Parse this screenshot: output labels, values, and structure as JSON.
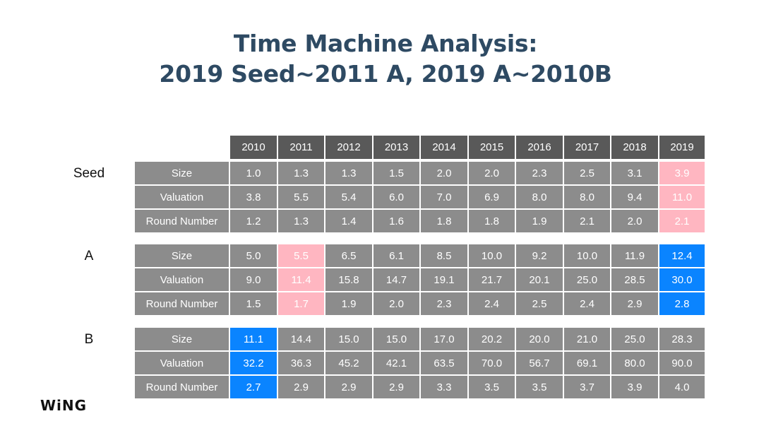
{
  "title": {
    "line1": "Time Machine Analysis:",
    "line2": "2019 Seed~2011 A, 2019 A~2010B"
  },
  "logo": "WiNG",
  "colors": {
    "header": "#595959",
    "cell": "#8c8c8c",
    "highlight_pink": "#ffb6c1",
    "highlight_blue": "#0a84ff",
    "title": "#2e4a63"
  },
  "chart_data": {
    "type": "table",
    "years": [
      "2010",
      "2011",
      "2012",
      "2013",
      "2014",
      "2015",
      "2016",
      "2017",
      "2018",
      "2019"
    ],
    "sections": [
      {
        "name": "Seed",
        "rows": [
          {
            "metric": "Size",
            "values": [
              "1.0",
              "1.3",
              "1.3",
              "1.5",
              "2.0",
              "2.0",
              "2.3",
              "2.5",
              "3.1",
              "3.9"
            ]
          },
          {
            "metric": "Valuation",
            "values": [
              "3.8",
              "5.5",
              "5.4",
              "6.0",
              "7.0",
              "6.9",
              "8.0",
              "8.0",
              "9.4",
              "11.0"
            ]
          },
          {
            "metric": "Round Number",
            "values": [
              "1.2",
              "1.3",
              "1.4",
              "1.6",
              "1.8",
              "1.8",
              "1.9",
              "2.1",
              "2.0",
              "2.1"
            ]
          }
        ],
        "highlights": [
          {
            "year": "2019",
            "color": "pink"
          }
        ]
      },
      {
        "name": "A",
        "rows": [
          {
            "metric": "Size",
            "values": [
              "5.0",
              "5.5",
              "6.5",
              "6.1",
              "8.5",
              "10.0",
              "9.2",
              "10.0",
              "11.9",
              "12.4"
            ]
          },
          {
            "metric": "Valuation",
            "values": [
              "9.0",
              "11.4",
              "15.8",
              "14.7",
              "19.1",
              "21.7",
              "20.1",
              "25.0",
              "28.5",
              "30.0"
            ]
          },
          {
            "metric": "Round Number",
            "values": [
              "1.5",
              "1.7",
              "1.9",
              "2.0",
              "2.3",
              "2.4",
              "2.5",
              "2.4",
              "2.9",
              "2.8"
            ]
          }
        ],
        "highlights": [
          {
            "year": "2011",
            "color": "pink"
          },
          {
            "year": "2019",
            "color": "blue"
          }
        ]
      },
      {
        "name": "B",
        "rows": [
          {
            "metric": "Size",
            "values": [
              "11.1",
              "14.4",
              "15.0",
              "15.0",
              "17.0",
              "20.2",
              "20.0",
              "21.0",
              "25.0",
              "28.3"
            ]
          },
          {
            "metric": "Valuation",
            "values": [
              "32.2",
              "36.3",
              "45.2",
              "42.1",
              "63.5",
              "70.0",
              "56.7",
              "69.1",
              "80.0",
              "90.0"
            ]
          },
          {
            "metric": "Round Number",
            "values": [
              "2.7",
              "2.9",
              "2.9",
              "2.9",
              "3.3",
              "3.5",
              "3.5",
              "3.7",
              "3.9",
              "4.0"
            ]
          }
        ],
        "highlights": [
          {
            "year": "2010",
            "color": "blue"
          }
        ]
      }
    ]
  }
}
